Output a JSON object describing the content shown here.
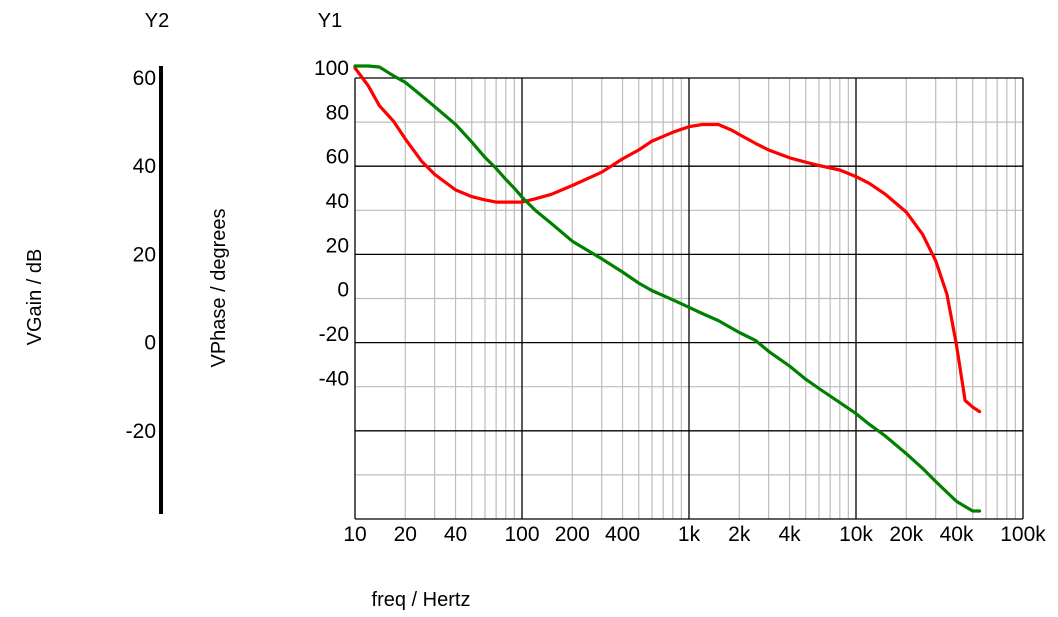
{
  "chart_data": {
    "type": "line",
    "x_scale": "log",
    "xlabel": "freq / Hertz",
    "xlim": [
      10,
      100000
    ],
    "x_tick_labels": [
      "10",
      "20",
      "40",
      "100",
      "200",
      "400",
      "1k",
      "2k",
      "4k",
      "10k",
      "20k",
      "40k",
      "100k"
    ],
    "y1": {
      "header": "Y1",
      "label": "VPhase / degrees",
      "ylim": [
        -50,
        100
      ],
      "ticks": [
        100,
        80,
        60,
        40,
        20,
        0,
        -20,
        -40
      ]
    },
    "y2": {
      "header": "Y2",
      "label": "VGain / dB",
      "ylim": [
        -35,
        60
      ],
      "ticks": [
        60,
        40,
        20,
        0,
        -20
      ]
    },
    "grid": true,
    "series": [
      {
        "axis": "y1",
        "color": "#ff0000",
        "x": [
          10,
          12,
          14,
          17,
          20,
          25,
          30,
          40,
          50,
          60,
          70,
          80,
          90,
          100,
          120,
          150,
          200,
          300,
          400,
          500,
          600,
          800,
          1000,
          1200,
          1500,
          1800,
          2000,
          2500,
          3000,
          4000,
          5000,
          6000,
          8000,
          10000,
          12000,
          15000,
          20000,
          25000,
          30000,
          35000,
          40000,
          45000,
          50000,
          55000
        ],
        "y": [
          100,
          92,
          83,
          76,
          68,
          58,
          52,
          45,
          42,
          40.5,
          39.5,
          39.5,
          39.5,
          39.5,
          41,
          43,
          47,
          53,
          59,
          63,
          67,
          71,
          73.5,
          74.5,
          74.5,
          72,
          70,
          66,
          63,
          59.5,
          57.5,
          56,
          54,
          51,
          48,
          43,
          35,
          25,
          13,
          -2,
          -25,
          -50,
          -53,
          -55
        ]
      },
      {
        "axis": "y2",
        "color": "#008000",
        "x": [
          10,
          12,
          14,
          17,
          20,
          25,
          30,
          40,
          50,
          60,
          70,
          80,
          90,
          100,
          120,
          150,
          200,
          300,
          400,
          500,
          600,
          800,
          1000,
          1200,
          1500,
          2000,
          2500,
          3000,
          4000,
          5000,
          6000,
          8000,
          10000,
          12000,
          15000,
          20000,
          25000,
          30000,
          40000,
          50000,
          55000
        ],
        "y": [
          65,
          63.5,
          62.5,
          60.5,
          59,
          56,
          53.5,
          49.5,
          45.5,
          42,
          39.5,
          37,
          35,
          33,
          30,
          27,
          23,
          19,
          16,
          13.5,
          11.8,
          9.7,
          8,
          6.6,
          5,
          2.3,
          0.5,
          -2,
          -5.3,
          -8.3,
          -10.4,
          -13.6,
          -16.1,
          -18.5,
          -21.2,
          -25.2,
          -28.5,
          -31.5,
          -36,
          -40,
          -42
        ]
      }
    ]
  }
}
